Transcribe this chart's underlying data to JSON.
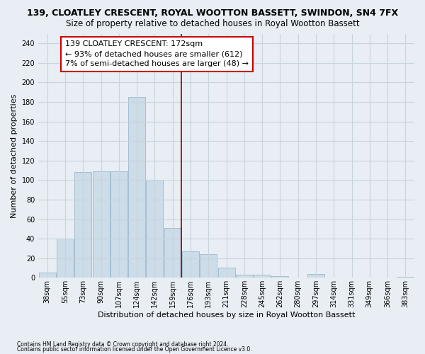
{
  "title": "139, CLOATLEY CRESCENT, ROYAL WOOTTON BASSETT, SWINDON, SN4 7FX",
  "subtitle": "Size of property relative to detached houses in Royal Wootton Bassett",
  "xlabel": "Distribution of detached houses by size in Royal Wootton Bassett",
  "ylabel": "Number of detached properties",
  "categories": [
    "38sqm",
    "55sqm",
    "73sqm",
    "90sqm",
    "107sqm",
    "124sqm",
    "142sqm",
    "159sqm",
    "176sqm",
    "193sqm",
    "211sqm",
    "228sqm",
    "245sqm",
    "262sqm",
    "280sqm",
    "297sqm",
    "314sqm",
    "331sqm",
    "349sqm",
    "366sqm",
    "383sqm"
  ],
  "values": [
    5,
    40,
    108,
    109,
    109,
    185,
    100,
    51,
    27,
    24,
    10,
    3,
    3,
    2,
    0,
    4,
    0,
    0,
    0,
    0,
    1
  ],
  "bar_color": "#ccdce8",
  "bar_edge_color": "#9ab8cc",
  "vline_index": 8,
  "vline_color": "#8b0000",
  "annotation_title": "139 CLOATLEY CRESCENT: 172sqm",
  "annotation_line1": "← 93% of detached houses are smaller (612)",
  "annotation_line2": "7% of semi-detached houses are larger (48) →",
  "annotation_box_color": "#cc0000",
  "ylim": [
    0,
    250
  ],
  "yticks": [
    0,
    20,
    40,
    60,
    80,
    100,
    120,
    140,
    160,
    180,
    200,
    220,
    240
  ],
  "footnote1": "Contains HM Land Registry data © Crown copyright and database right 2024.",
  "footnote2": "Contains public sector information licensed under the Open Government Licence v3.0.",
  "background_color": "#e8eef4",
  "grid_color": "#c8d4dc",
  "title_fontsize": 9,
  "subtitle_fontsize": 8.5,
  "axis_label_fontsize": 8,
  "ylabel_fontsize": 8,
  "tick_fontsize": 7,
  "annotation_fontsize": 8
}
